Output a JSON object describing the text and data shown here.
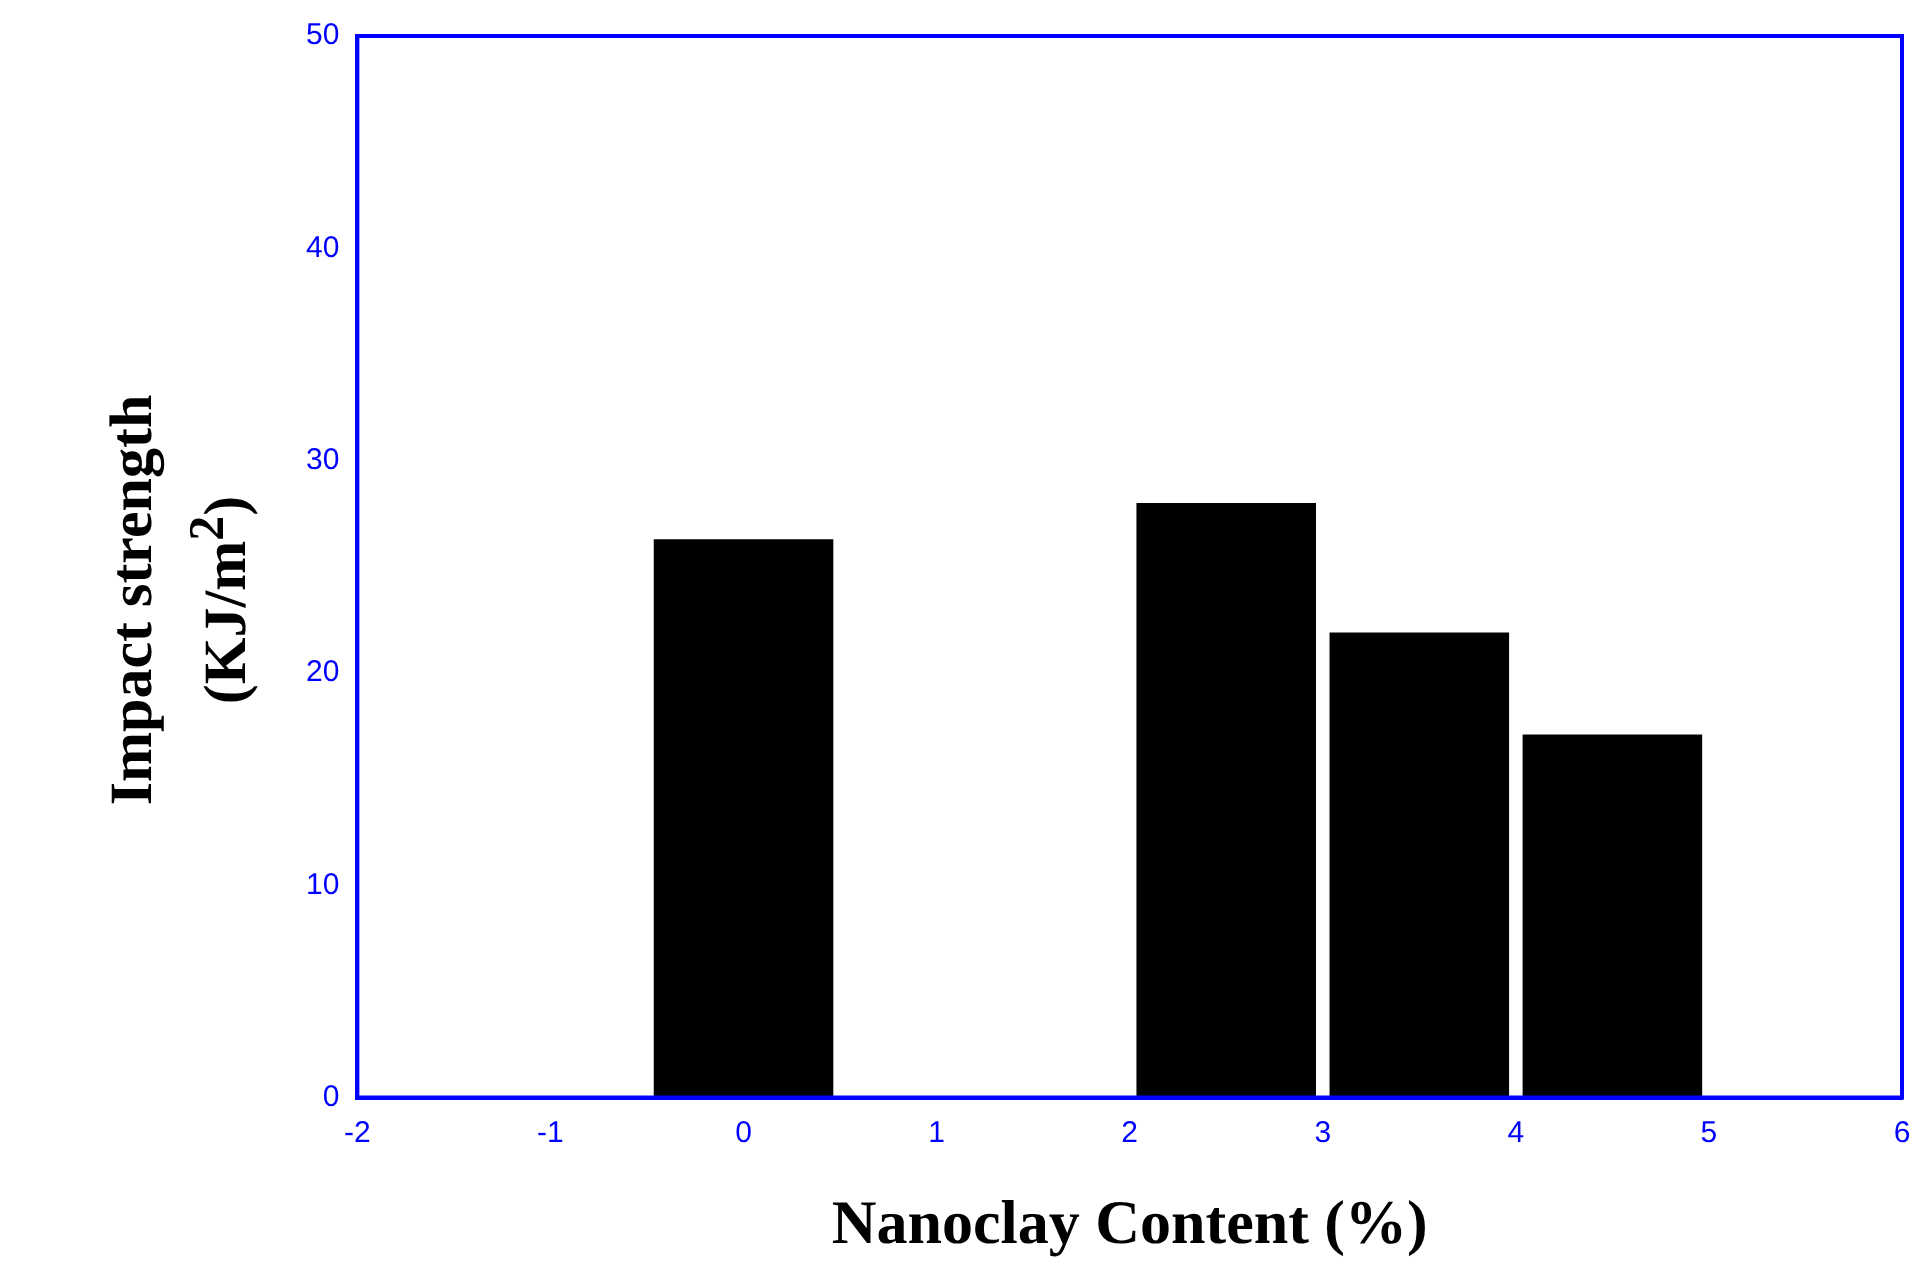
{
  "chart_data": {
    "type": "bar",
    "xlabel": "Nanoclay Content (%)",
    "ylabel": "Impact strength (KJ/m$^{2}$)",
    "x": [
      0,
      2.5,
      3.5,
      4.5
    ],
    "values": [
      26.3,
      28,
      21.9,
      17.1
    ],
    "color": "#000000",
    "xlim": [
      -2,
      6
    ],
    "xticks": [
      -2,
      -1,
      0,
      1,
      2,
      3,
      4,
      5,
      6
    ],
    "ylim": [
      0,
      50
    ],
    "yticks": [
      0,
      10,
      20,
      30,
      40,
      50
    ],
    "grid": false,
    "legend": false
  }
}
